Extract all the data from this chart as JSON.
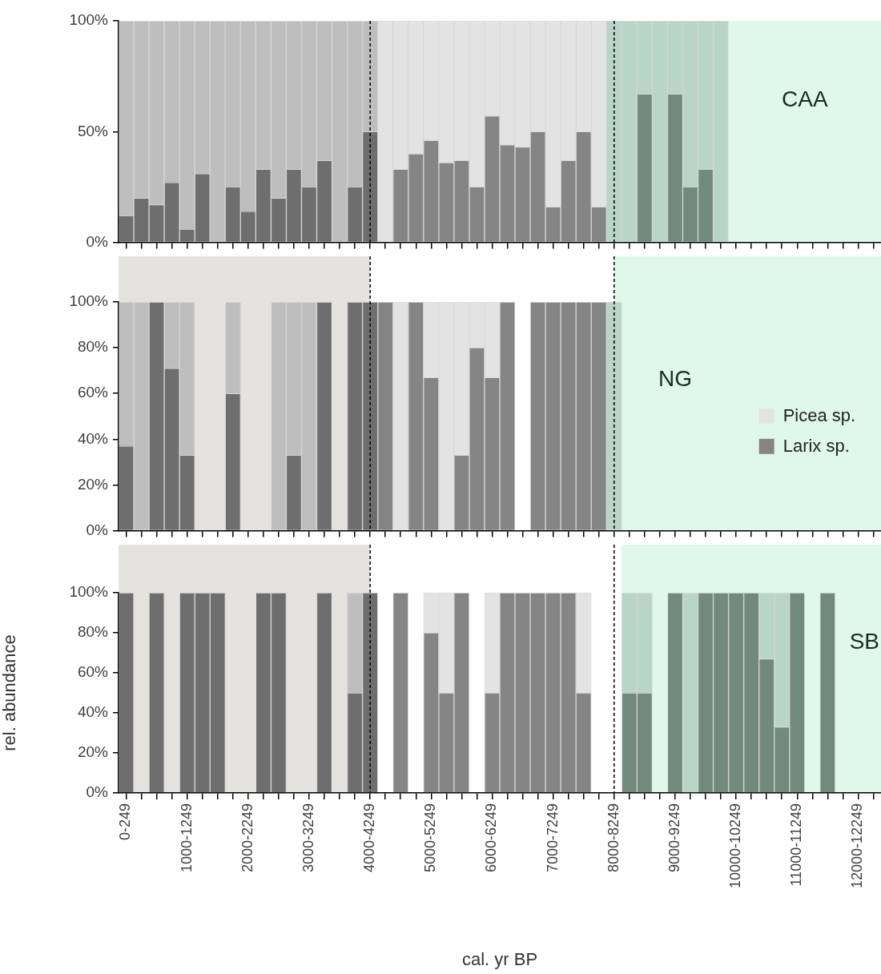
{
  "chart_data": [
    {
      "type": "bar",
      "stacked": true,
      "annotations": [
        "CAA"
      ],
      "categories": [
        "0-249",
        null,
        null,
        null,
        "1000-1249",
        null,
        null,
        null,
        "2000-2249",
        null,
        null,
        null,
        "3000-3249",
        null,
        null,
        null,
        "4000-4249",
        null,
        null,
        null,
        "5000-5249",
        null,
        null,
        null,
        "6000-6249",
        null,
        null,
        null,
        "7000-7249",
        null,
        null,
        null,
        "8000-8249",
        null,
        null,
        null,
        "9000-9249",
        null,
        null,
        null,
        "10000-10249",
        null,
        null,
        null,
        "11000-11249",
        null,
        null,
        null,
        "12000-12249",
        null
      ],
      "ylim": [
        0,
        100
      ],
      "yticks": [
        {
          "value": 0,
          "label": "0%"
        },
        {
          "value": 50,
          "label": "50%"
        },
        {
          "value": 100,
          "label": "100%"
        }
      ],
      "tick_labels": "y",
      "ref_lines": [
        {
          "axis": "x",
          "value": "4000-4249",
          "line_style": "dashed",
          "color": "#000000"
        },
        {
          "axis": "x",
          "value": "8000-8249",
          "line_style": "dashed",
          "color": "#000000"
        }
      ],
      "series": [
        {
          "values": [
            12,
            20,
            17,
            27,
            6,
            31,
            null,
            25,
            14,
            33,
            20,
            33,
            25,
            37,
            null,
            25,
            50,
            null,
            33,
            40,
            46,
            36,
            37,
            25,
            57,
            44,
            43,
            50,
            16,
            37,
            50,
            16,
            null,
            null,
            67,
            null,
            67,
            25,
            33,
            null,
            null,
            null,
            null,
            null,
            null,
            null,
            null,
            null,
            null,
            null
          ],
          "colors": [
            "#6e6e6e",
            "#6e6e6e",
            "#6e6e6e",
            "#6e6e6e",
            "#6e6e6e",
            "#6e6e6e",
            "#6e6e6e",
            "#6e6e6e",
            "#6e6e6e",
            "#6e6e6e",
            "#6e6e6e",
            "#6e6e6e",
            "#6e6e6e",
            "#6e6e6e",
            "#6e6e6e",
            "#6e6e6e",
            "#6e6e6e",
            "#858585",
            "#858585",
            "#858585",
            "#858585",
            "#858585",
            "#858585",
            "#858585",
            "#858585",
            "#858585",
            "#858585",
            "#858585",
            "#858585",
            "#858585",
            "#858585",
            "#858585",
            "#718a7d",
            "#718a7d",
            "#718a7d",
            "#718a7d",
            "#718a7d",
            "#718a7d",
            "#718a7d",
            "#718a7d",
            "#718a7d",
            "#718a7d",
            "#718a7d",
            "#718a7d",
            "#718a7d",
            "#718a7d",
            "#718a7d",
            "#718a7d",
            "#718a7d",
            "#718a7d"
          ]
        },
        {
          "values": [
            88,
            80,
            83,
            73,
            94,
            69,
            100,
            75,
            86,
            67,
            80,
            67,
            75,
            63,
            100,
            75,
            50,
            100,
            67,
            60,
            54,
            64,
            63,
            75,
            43,
            56,
            57,
            50,
            84,
            63,
            50,
            84,
            100,
            100,
            33,
            100,
            33,
            75,
            67,
            100,
            null,
            null,
            null,
            null,
            null,
            null,
            null,
            null,
            null,
            null
          ],
          "colors": [
            "#bebebe",
            "#bebebe",
            "#bebebe",
            "#bebebe",
            "#bebebe",
            "#bebebe",
            "#bebebe",
            "#bebebe",
            "#bebebe",
            "#bebebe",
            "#bebebe",
            "#bebebe",
            "#bebebe",
            "#bebebe",
            "#bebebe",
            "#bebebe",
            "#bebebe",
            "#e3e3e3",
            "#e3e3e3",
            "#e3e3e3",
            "#e3e3e3",
            "#e3e3e3",
            "#e3e3e3",
            "#e3e3e3",
            "#e3e3e3",
            "#e3e3e3",
            "#e3e3e3",
            "#e3e3e3",
            "#e3e3e3",
            "#e3e3e3",
            "#e3e3e3",
            "#e3e3e3",
            "#b9d5c7",
            "#b9d5c7",
            "#b9d5c7",
            "#b9d5c7",
            "#b9d5c7",
            "#b9d5c7",
            "#b9d5c7",
            "#b9d5c7",
            "#b9d5c7",
            "#b9d5c7",
            "#b9d5c7",
            "#b9d5c7",
            "#b9d5c7",
            "#b9d5c7",
            "#b9d5c7",
            "#b9d5c7",
            "#b9d5c7",
            "#b9d5c7"
          ]
        }
      ]
    },
    {
      "type": "bar",
      "stacked": true,
      "annotations": [
        "NG"
      ],
      "legend": "right",
      "categories": [
        "0-249",
        null,
        null,
        null,
        "1000-1249",
        null,
        null,
        null,
        "2000-2249",
        null,
        null,
        null,
        "3000-3249",
        null,
        null,
        null,
        "4000-4249",
        null,
        null,
        null,
        "5000-5249",
        null,
        null,
        null,
        "6000-6249",
        null,
        null,
        null,
        "7000-7249",
        null,
        null,
        null,
        "8000-8249",
        null,
        null,
        null,
        "9000-9249",
        null,
        null,
        null,
        "10000-10249",
        null,
        null,
        null,
        "11000-11249",
        null,
        null,
        null,
        "12000-12249",
        null
      ],
      "ylim": [
        0,
        100
      ],
      "yticks": [
        {
          "value": 0,
          "label": "0%"
        },
        {
          "value": 20,
          "label": "20%"
        },
        {
          "value": 40,
          "label": "40%"
        },
        {
          "value": 60,
          "label": "60%"
        },
        {
          "value": 80,
          "label": "80%"
        },
        {
          "value": 100,
          "label": "100%"
        }
      ],
      "tick_labels": "y",
      "ref_lines": [
        {
          "axis": "x",
          "value": "4000-4249",
          "line_style": "dashed",
          "color": "#000000"
        },
        {
          "axis": "x",
          "value": "8000-8249",
          "line_style": "dashed",
          "color": "#000000"
        }
      ],
      "series": [
        {
          "name": "Larix sp.",
          "color": "#858585",
          "values": [
            37,
            null,
            100,
            71,
            33,
            null,
            null,
            60,
            null,
            null,
            null,
            33,
            null,
            100,
            null,
            100,
            100,
            100,
            null,
            100,
            67,
            null,
            33,
            80,
            67,
            100,
            null,
            100,
            100,
            100,
            100,
            100,
            null,
            null,
            null,
            null,
            null,
            null,
            null,
            null,
            null,
            null,
            null,
            null,
            null,
            null,
            null,
            null,
            null,
            null
          ],
          "colors": [
            "#6e6e6e",
            "#6e6e6e",
            "#6e6e6e",
            "#6e6e6e",
            "#6e6e6e",
            "#6e6e6e",
            "#6e6e6e",
            "#6e6e6e",
            "#6e6e6e",
            "#6e6e6e",
            "#6e6e6e",
            "#6e6e6e",
            "#6e6e6e",
            "#6e6e6e",
            "#6e6e6e",
            "#6e6e6e",
            "#6e6e6e",
            "#858585",
            "#858585",
            "#858585",
            "#858585",
            "#858585",
            "#858585",
            "#858585",
            "#858585",
            "#858585",
            "#858585",
            "#858585",
            "#858585",
            "#858585",
            "#858585",
            "#858585",
            "#718a7d",
            "#718a7d",
            "#718a7d",
            "#718a7d",
            "#718a7d",
            "#718a7d",
            "#718a7d",
            "#718a7d",
            "#718a7d",
            "#718a7d",
            "#718a7d",
            "#718a7d",
            "#718a7d",
            "#718a7d",
            "#718a7d",
            "#718a7d",
            "#718a7d",
            "#718a7d"
          ]
        },
        {
          "name": "Picea sp.",
          "color": "#e3e3e3",
          "values": [
            63,
            100,
            null,
            29,
            67,
            null,
            null,
            40,
            null,
            null,
            100,
            67,
            100,
            null,
            null,
            null,
            null,
            null,
            100,
            null,
            33,
            100,
            67,
            20,
            33,
            null,
            null,
            null,
            null,
            null,
            null,
            null,
            100,
            null,
            null,
            null,
            null,
            null,
            null,
            null,
            null,
            null,
            null,
            null,
            null,
            null,
            null,
            null,
            null,
            null
          ],
          "colors": [
            "#bebebe",
            "#bebebe",
            "#bebebe",
            "#bebebe",
            "#bebebe",
            "#bebebe",
            "#bebebe",
            "#bebebe",
            "#bebebe",
            "#bebebe",
            "#bebebe",
            "#bebebe",
            "#bebebe",
            "#bebebe",
            "#bebebe",
            "#bebebe",
            "#bebebe",
            "#e3e3e3",
            "#e3e3e3",
            "#e3e3e3",
            "#e3e3e3",
            "#e3e3e3",
            "#e3e3e3",
            "#e3e3e3",
            "#e3e3e3",
            "#e3e3e3",
            "#e3e3e3",
            "#e3e3e3",
            "#e3e3e3",
            "#e3e3e3",
            "#e3e3e3",
            "#e3e3e3",
            "#b9d5c7",
            "#b9d5c7",
            "#b9d5c7",
            "#b9d5c7",
            "#b9d5c7",
            "#b9d5c7",
            "#b9d5c7",
            "#b9d5c7",
            "#b9d5c7",
            "#b9d5c7",
            "#b9d5c7",
            "#b9d5c7",
            "#b9d5c7",
            "#b9d5c7",
            "#b9d5c7",
            "#b9d5c7",
            "#b9d5c7",
            "#b9d5c7"
          ]
        }
      ]
    },
    {
      "type": "bar",
      "stacked": true,
      "annotations": [
        "SB"
      ],
      "xlabel": "cal. yr BP",
      "ylabel": "rel. abundance",
      "categories": [
        "0-249",
        null,
        null,
        null,
        "1000-1249",
        null,
        null,
        null,
        "2000-2249",
        null,
        null,
        null,
        "3000-3249",
        null,
        null,
        null,
        "4000-4249",
        null,
        null,
        null,
        "5000-5249",
        null,
        null,
        null,
        "6000-6249",
        null,
        null,
        null,
        "7000-7249",
        null,
        null,
        null,
        "8000-8249",
        null,
        null,
        null,
        "9000-9249",
        null,
        null,
        null,
        "10000-10249",
        null,
        null,
        null,
        "11000-11249",
        null,
        null,
        null,
        "12000-12249",
        null
      ],
      "ylim": [
        0,
        100
      ],
      "yticks": [
        {
          "value": 0,
          "label": "0%"
        },
        {
          "value": 20,
          "label": "20%"
        },
        {
          "value": 40,
          "label": "40%"
        },
        {
          "value": 60,
          "label": "60%"
        },
        {
          "value": 80,
          "label": "80%"
        },
        {
          "value": 100,
          "label": "100%"
        }
      ],
      "ref_lines": [
        {
          "axis": "x",
          "value": "4000-4249",
          "line_style": "dashed",
          "color": "#000000"
        },
        {
          "axis": "x",
          "value": "8000-8249",
          "line_style": "dashed",
          "color": "#000000"
        }
      ],
      "series": [
        {
          "values": [
            100,
            null,
            100,
            null,
            100,
            100,
            100,
            null,
            null,
            100,
            100,
            null,
            null,
            100,
            null,
            50,
            100,
            null,
            100,
            null,
            80,
            50,
            100,
            null,
            50,
            100,
            100,
            100,
            100,
            100,
            50,
            null,
            null,
            50,
            50,
            null,
            100,
            null,
            100,
            100,
            100,
            100,
            67,
            33,
            100,
            null,
            100,
            null,
            null,
            null
          ],
          "colors": [
            "#6e6e6e",
            "#6e6e6e",
            "#6e6e6e",
            "#6e6e6e",
            "#6e6e6e",
            "#6e6e6e",
            "#6e6e6e",
            "#6e6e6e",
            "#6e6e6e",
            "#6e6e6e",
            "#6e6e6e",
            "#6e6e6e",
            "#6e6e6e",
            "#6e6e6e",
            "#6e6e6e",
            "#6e6e6e",
            "#6e6e6e",
            "#858585",
            "#858585",
            "#858585",
            "#858585",
            "#858585",
            "#858585",
            "#858585",
            "#858585",
            "#858585",
            "#858585",
            "#858585",
            "#858585",
            "#858585",
            "#858585",
            "#858585",
            "#718a7d",
            "#718a7d",
            "#718a7d",
            "#718a7d",
            "#718a7d",
            "#718a7d",
            "#718a7d",
            "#718a7d",
            "#718a7d",
            "#718a7d",
            "#718a7d",
            "#718a7d",
            "#718a7d",
            "#718a7d",
            "#718a7d",
            "#718a7d",
            "#718a7d",
            "#718a7d"
          ]
        },
        {
          "values": [
            null,
            null,
            null,
            null,
            null,
            null,
            null,
            null,
            null,
            null,
            null,
            null,
            null,
            null,
            null,
            50,
            null,
            null,
            null,
            null,
            20,
            50,
            null,
            null,
            50,
            null,
            null,
            null,
            null,
            null,
            50,
            null,
            null,
            50,
            50,
            null,
            null,
            100,
            null,
            null,
            null,
            null,
            33,
            67,
            null,
            null,
            null,
            null,
            null,
            null
          ],
          "colors": [
            "#bebebe",
            "#bebebe",
            "#bebebe",
            "#bebebe",
            "#bebebe",
            "#bebebe",
            "#bebebe",
            "#bebebe",
            "#bebebe",
            "#bebebe",
            "#bebebe",
            "#bebebe",
            "#bebebe",
            "#bebebe",
            "#bebebe",
            "#bebebe",
            "#bebebe",
            "#e3e3e3",
            "#e3e3e3",
            "#e3e3e3",
            "#e3e3e3",
            "#e3e3e3",
            "#e3e3e3",
            "#e3e3e3",
            "#e3e3e3",
            "#e3e3e3",
            "#e3e3e3",
            "#e3e3e3",
            "#e3e3e3",
            "#e3e3e3",
            "#e3e3e3",
            "#e3e3e3",
            "#b9d5c7",
            "#b9d5c7",
            "#b9d5c7",
            "#b9d5c7",
            "#b9d5c7",
            "#b9d5c7",
            "#b9d5c7",
            "#b9d5c7",
            "#b9d5c7",
            "#b9d5c7",
            "#b9d5c7",
            "#b9d5c7",
            "#b9d5c7",
            "#b9d5c7",
            "#b9d5c7",
            "#b9d5c7",
            "#b9d5c7",
            "#b9d5c7"
          ]
        }
      ]
    }
  ]
}
